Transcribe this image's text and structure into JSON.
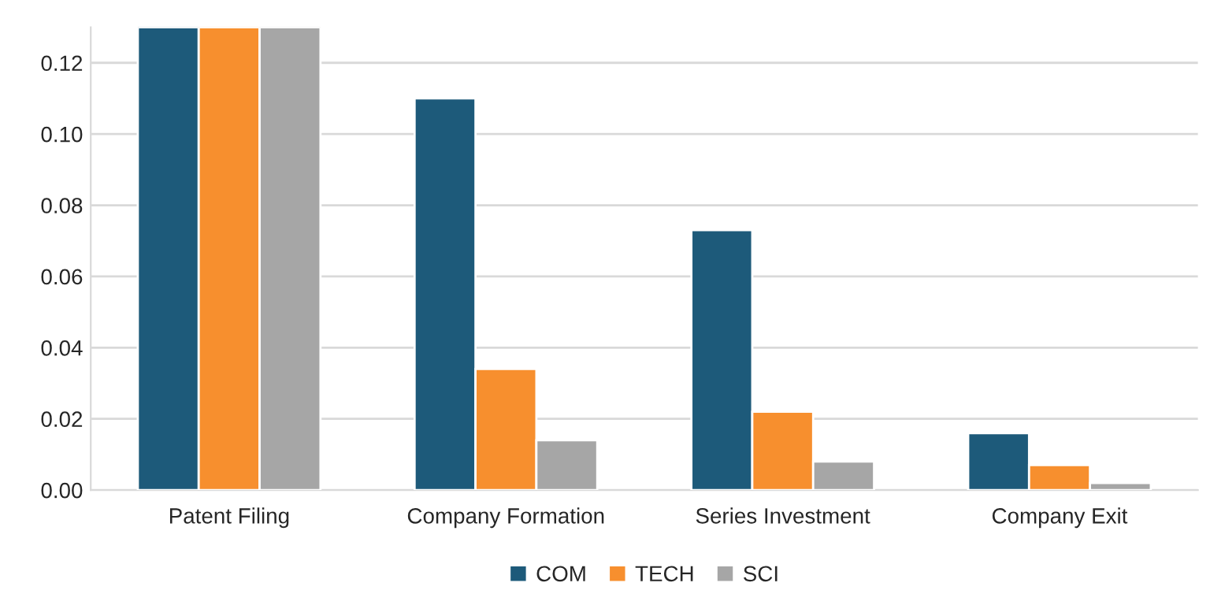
{
  "chart_data": {
    "type": "bar",
    "categories": [
      "Patent Filing",
      "Company Formation",
      "Series Investment",
      "Company Exit"
    ],
    "series": [
      {
        "name": "COM",
        "color": "#1d5a7a",
        "values": [
          0.13,
          0.11,
          0.073,
          0.016
        ]
      },
      {
        "name": "TECH",
        "color": "#f78f2e",
        "values": [
          0.13,
          0.034,
          0.022,
          0.007
        ]
      },
      {
        "name": "SCI",
        "color": "#a6a6a6",
        "values": [
          0.13,
          0.014,
          0.008,
          0.002
        ]
      }
    ],
    "ylim": [
      0,
      0.13
    ],
    "yticks": [
      {
        "value": 0,
        "label": "0.00"
      },
      {
        "value": 0.02,
        "label": "0.02"
      },
      {
        "value": 0.04,
        "label": "0.04"
      },
      {
        "value": 0.06,
        "label": "0.06"
      },
      {
        "value": 0.08,
        "label": "0.08"
      },
      {
        "value": 0.1,
        "label": "0.10"
      },
      {
        "value": 0.12,
        "label": "0.12"
      }
    ],
    "grid": "y",
    "legend": "bottom"
  }
}
